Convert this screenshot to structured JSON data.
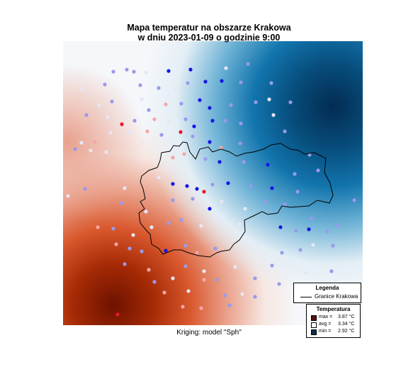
{
  "title_line1": "Mapa temperatur na obszarze Krakowa",
  "title_line2": "w dniu 2023-01-09 o godzinie 9:00",
  "subtitle": "Kriging: model \"Sph\"",
  "legend": {
    "title": "Legenda",
    "boundary_label": "Granice Krakowa",
    "boundary_color": "#000000"
  },
  "temperature_legend": {
    "title": "Temperatura",
    "items": [
      {
        "label": "max =",
        "value": "3.87 °C",
        "color": "#5a0f0f"
      },
      {
        "label": "avg =",
        "value": "3.34 °C",
        "color": "#ffffff"
      },
      {
        "label": "min =",
        "value": "2.92 °C",
        "color": "#0b2f4f"
      }
    ]
  },
  "color_scale": {
    "min": 2.92,
    "avg": 3.34,
    "max": 3.87,
    "cold_color": "#062e55",
    "mid_color": "#f5f7fa",
    "warm_color": "#7a1505"
  },
  "station_colors": {
    "hot": "#e8182c",
    "warm": "#f4a6a6",
    "neutral": "#e6e6f6",
    "cool": "#9a9aec",
    "cold": "#1515e6"
  }
}
